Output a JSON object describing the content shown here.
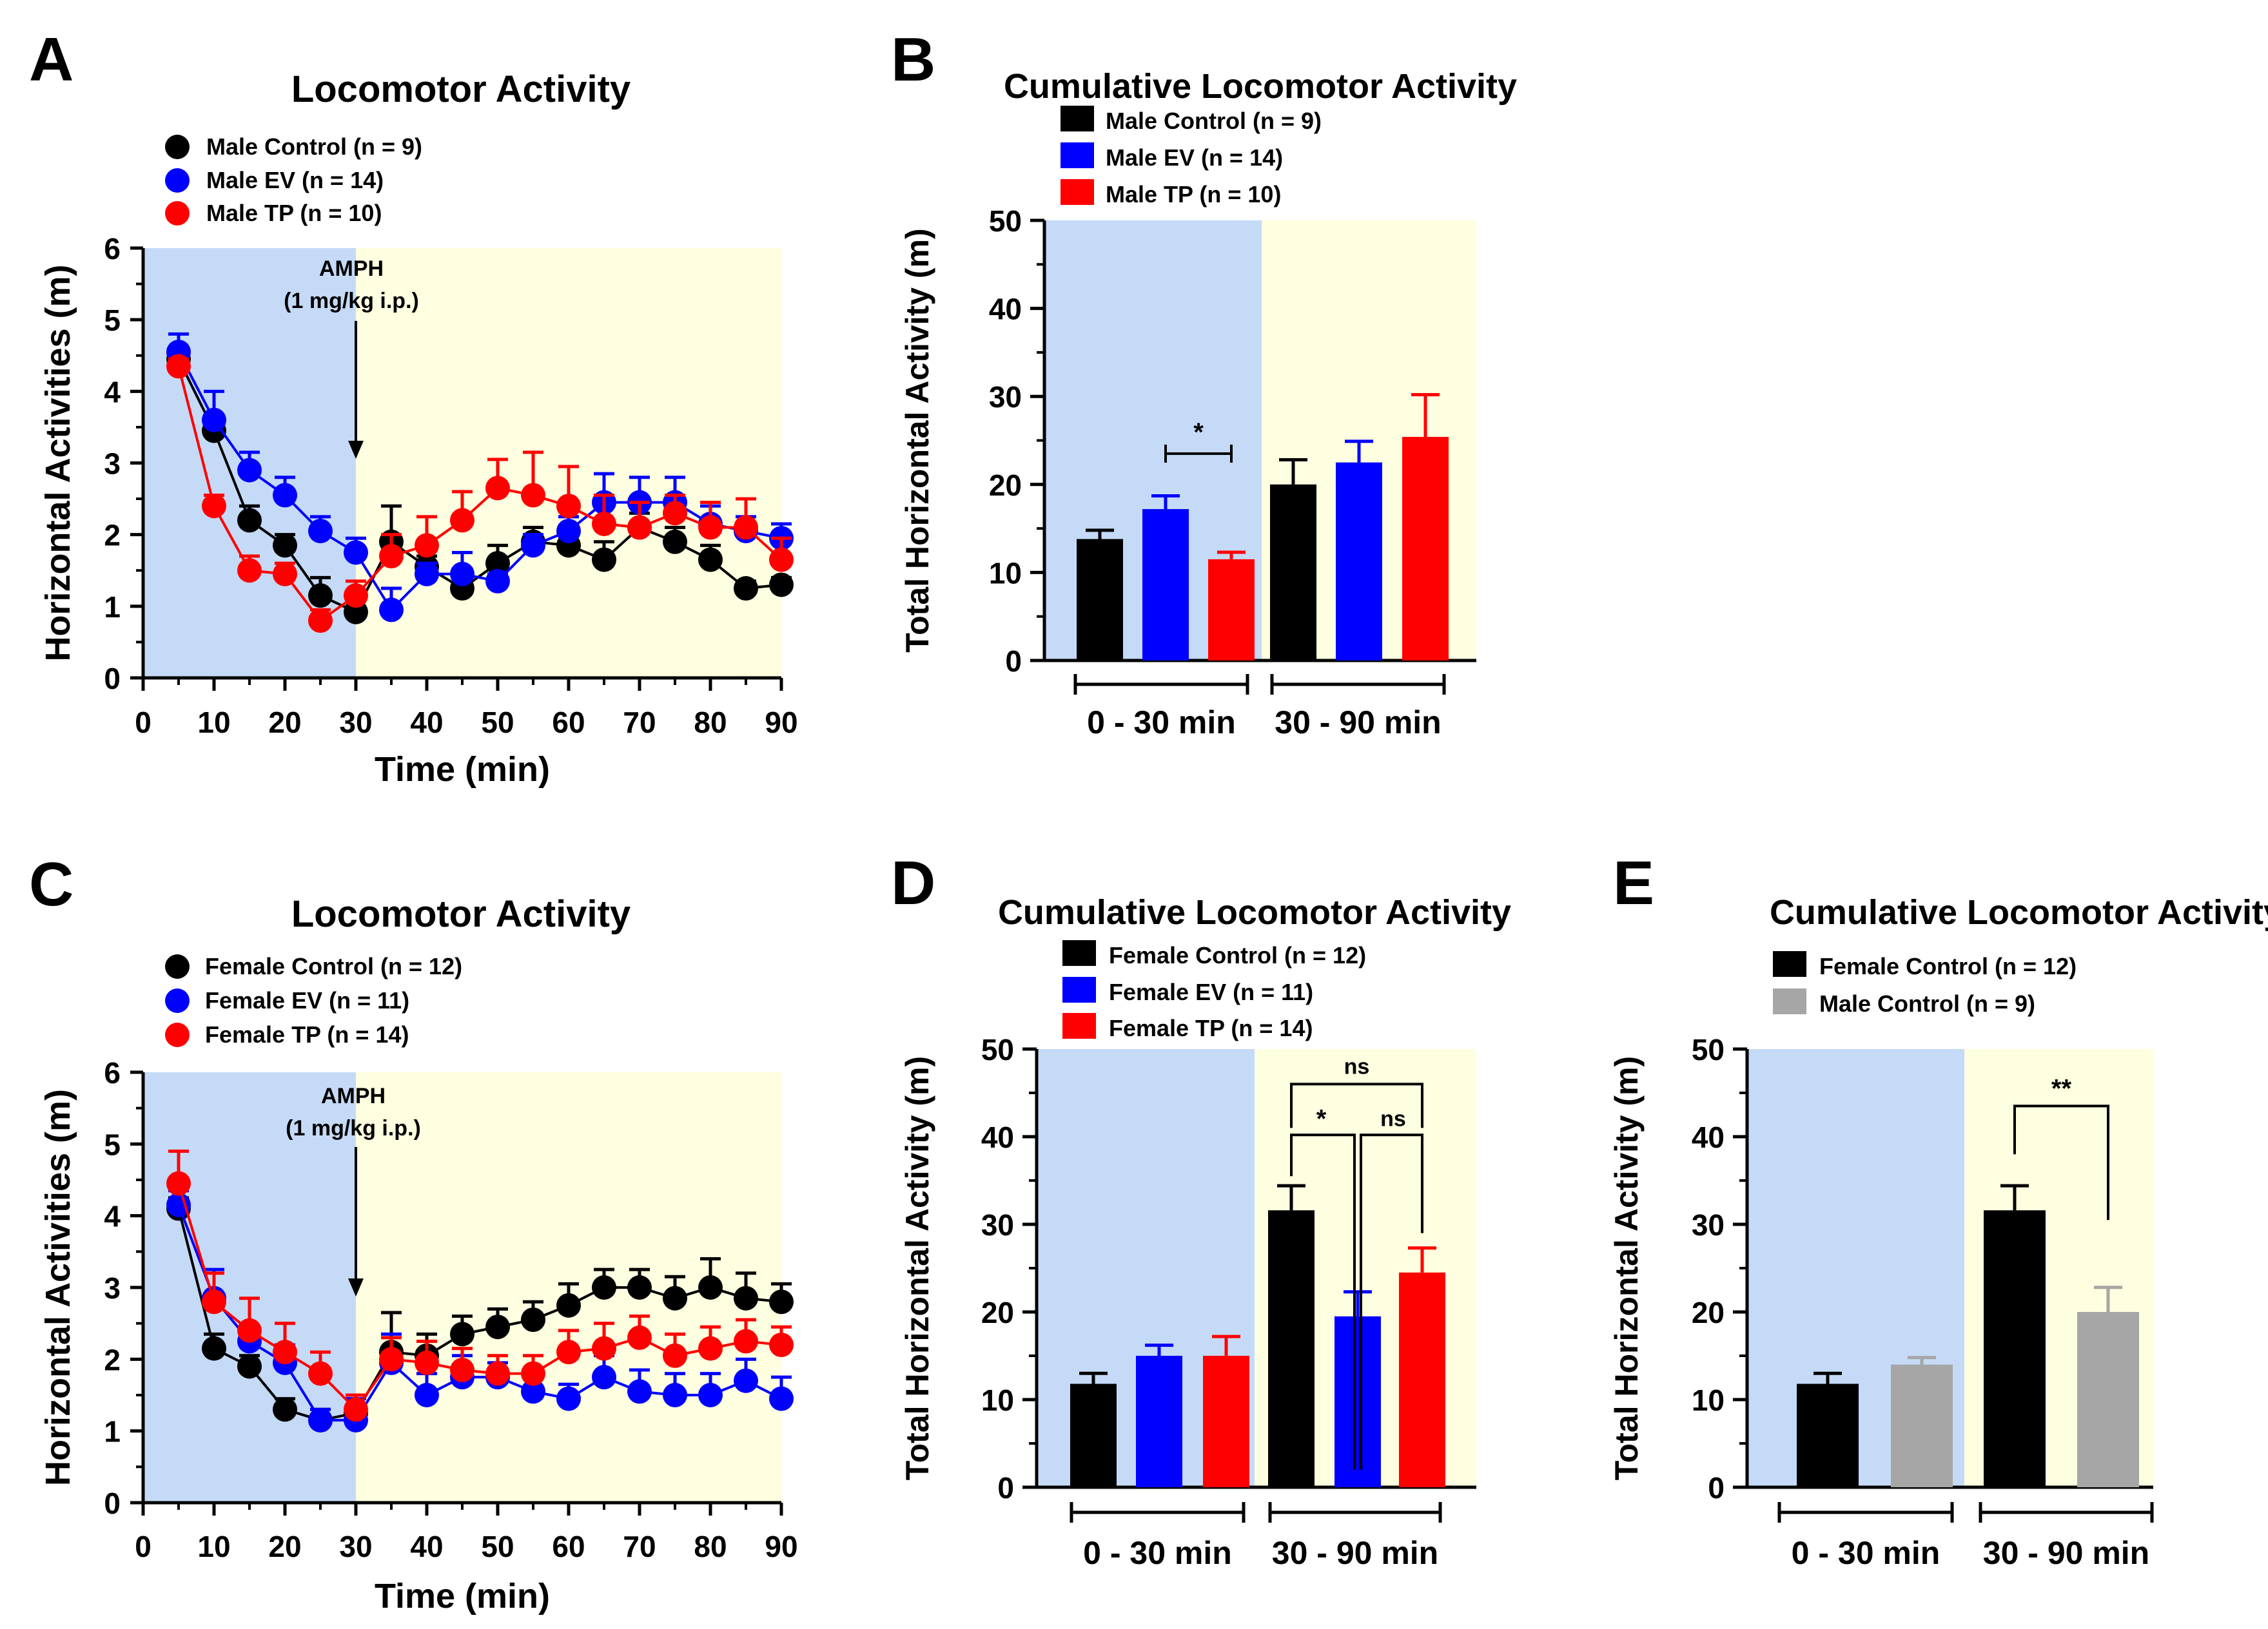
{
  "colors": {
    "black": "#000000",
    "blue": "#0000ff",
    "red": "#ff0000",
    "gray": "#a6a6a6",
    "shade_pre": "#c5daf6",
    "shade_post": "#fefee0"
  },
  "chart_data": [
    {
      "id": "A",
      "type": "line",
      "panel_label": "A",
      "title": "Locomotor Activity",
      "xlabel": "Time (min)",
      "ylabel": "Horizontal Activities (m)",
      "xlim": [
        0,
        90
      ],
      "ylim": [
        0,
        6
      ],
      "xticks": [
        "0",
        "10",
        "20",
        "30",
        "40",
        "50",
        "60",
        "70",
        "80",
        "90"
      ],
      "yticks": [
        "0",
        "1",
        "2",
        "3",
        "4",
        "5",
        "6"
      ],
      "annotation": {
        "line1": "AMPH",
        "line2": "(1 mg/kg i.p.)",
        "x": 30
      },
      "x": [
        5,
        10,
        15,
        20,
        25,
        30,
        35,
        40,
        45,
        50,
        55,
        60,
        65,
        70,
        75,
        80,
        85,
        90
      ],
      "series": [
        {
          "name": "Male Control (n = 9)",
          "color": "#000000",
          "values": [
            4.45,
            3.45,
            2.2,
            1.85,
            1.15,
            0.92,
            1.9,
            1.55,
            1.25,
            1.6,
            1.9,
            1.85,
            1.65,
            2.1,
            1.9,
            1.65,
            1.25,
            1.3
          ],
          "errors": [
            0.15,
            0.15,
            0.2,
            0.15,
            0.25,
            0.15,
            0.5,
            0.15,
            0.1,
            0.25,
            0.2,
            0.2,
            0.25,
            0.2,
            0.2,
            0.2,
            0.1,
            0.1
          ]
        },
        {
          "name": "Male EV (n = 14)",
          "color": "#0000ff",
          "values": [
            4.55,
            3.6,
            2.9,
            2.55,
            2.05,
            1.75,
            0.95,
            1.45,
            1.45,
            1.35,
            1.85,
            2.05,
            2.45,
            2.45,
            2.45,
            2.15,
            2.05,
            1.95
          ],
          "errors": [
            0.25,
            0.4,
            0.25,
            0.25,
            0.2,
            0.2,
            0.3,
            0.15,
            0.3,
            0.1,
            0.15,
            0.2,
            0.4,
            0.35,
            0.35,
            0.25,
            0.2,
            0.2
          ]
        },
        {
          "name": "Male TP (n = 10)",
          "color": "#ff0000",
          "values": [
            4.35,
            2.4,
            1.5,
            1.45,
            0.8,
            1.15,
            1.7,
            1.85,
            2.2,
            2.65,
            2.55,
            2.4,
            2.15,
            2.1,
            2.3,
            2.1,
            2.1,
            1.65
          ],
          "errors": [
            0.1,
            0.15,
            0.2,
            0.15,
            0.15,
            0.2,
            0.3,
            0.4,
            0.4,
            0.4,
            0.6,
            0.55,
            0.4,
            0.35,
            0.25,
            0.35,
            0.4,
            0.3
          ]
        }
      ]
    },
    {
      "id": "B",
      "type": "bar",
      "panel_label": "B",
      "title": "Cumulative Locomotor Activity",
      "ylabel": "Total Horizontal Activity (m)",
      "ylim": [
        0,
        50
      ],
      "yticks": [
        "0",
        "10",
        "20",
        "30",
        "40",
        "50"
      ],
      "categories": [
        "0 - 30 min",
        "30 - 90 min"
      ],
      "series": [
        {
          "name": "Male Control (n = 9)",
          "color": "#000000",
          "values": [
            13.8,
            20.0
          ],
          "errors": [
            1.0,
            2.8
          ]
        },
        {
          "name": "Male EV (n = 14)",
          "color": "#0000ff",
          "values": [
            17.2,
            22.5
          ],
          "errors": [
            1.5,
            2.4
          ]
        },
        {
          "name": "Male TP (n = 10)",
          "color": "#ff0000",
          "values": [
            11.5,
            25.4
          ],
          "errors": [
            0.8,
            4.8
          ]
        }
      ],
      "significance": [
        {
          "label": "*"
        }
      ]
    },
    {
      "id": "C",
      "type": "line",
      "panel_label": "C",
      "title": "Locomotor Activity",
      "xlabel": "Time (min)",
      "ylabel": "Horizontal Activities (m)",
      "xlim": [
        0,
        90
      ],
      "ylim": [
        0,
        6
      ],
      "xticks": [
        "0",
        "10",
        "20",
        "30",
        "40",
        "50",
        "60",
        "70",
        "80",
        "90"
      ],
      "yticks": [
        "0",
        "1",
        "2",
        "3",
        "4",
        "5",
        "6"
      ],
      "annotation": {
        "line1": "AMPH",
        "line2": "(1 mg/kg i.p.)",
        "x": 30
      },
      "x": [
        5,
        10,
        15,
        20,
        25,
        30,
        35,
        40,
        45,
        50,
        55,
        60,
        65,
        70,
        75,
        80,
        85,
        90
      ],
      "series": [
        {
          "name": "Female Control (n = 12)",
          "color": "#000000",
          "values": [
            4.1,
            2.15,
            1.9,
            1.3,
            1.15,
            1.25,
            2.1,
            2.05,
            2.35,
            2.45,
            2.55,
            2.75,
            3.0,
            3.0,
            2.85,
            3.0,
            2.85,
            2.8
          ],
          "errors": [
            0.15,
            0.2,
            0.15,
            0.15,
            0.15,
            0.1,
            0.55,
            0.3,
            0.25,
            0.25,
            0.25,
            0.3,
            0.25,
            0.25,
            0.3,
            0.4,
            0.35,
            0.25
          ]
        },
        {
          "name": "Female EV (n = 11)",
          "color": "#0000ff",
          "values": [
            4.15,
            2.85,
            2.25,
            1.95,
            1.15,
            1.15,
            1.95,
            1.5,
            1.75,
            1.75,
            1.55,
            1.45,
            1.75,
            1.55,
            1.5,
            1.5,
            1.7,
            1.45
          ],
          "errors": [
            0.2,
            0.4,
            0.2,
            0.25,
            0.15,
            0.3,
            0.4,
            0.3,
            0.3,
            0.2,
            0.3,
            0.2,
            0.3,
            0.3,
            0.3,
            0.3,
            0.3,
            0.3
          ]
        },
        {
          "name": "Female TP (n = 14)",
          "color": "#ff0000",
          "values": [
            4.45,
            2.8,
            2.4,
            2.1,
            1.8,
            1.3,
            2.0,
            1.95,
            1.85,
            1.8,
            1.8,
            2.1,
            2.15,
            2.3,
            2.05,
            2.15,
            2.25,
            2.2
          ],
          "errors": [
            0.45,
            0.4,
            0.45,
            0.4,
            0.3,
            0.2,
            0.3,
            0.3,
            0.3,
            0.25,
            0.25,
            0.3,
            0.35,
            0.3,
            0.3,
            0.3,
            0.3,
            0.25
          ]
        }
      ]
    },
    {
      "id": "D",
      "type": "bar",
      "panel_label": "D",
      "title": "Cumulative Locomotor Activity",
      "ylabel": "Total Horizontal Activity (m)",
      "ylim": [
        0,
        50
      ],
      "yticks": [
        "0",
        "10",
        "20",
        "30",
        "40",
        "50"
      ],
      "categories": [
        "0 - 30 min",
        "30 - 90 min"
      ],
      "series": [
        {
          "name": "Female Control (n = 12)",
          "color": "#000000",
          "values": [
            11.8,
            31.6
          ],
          "errors": [
            1.2,
            2.8
          ]
        },
        {
          "name": "Female EV (n = 11)",
          "color": "#0000ff",
          "values": [
            15.0,
            19.5
          ],
          "errors": [
            1.2,
            2.8
          ]
        },
        {
          "name": "Female TP (n = 14)",
          "color": "#ff0000",
          "values": [
            15.0,
            24.5
          ],
          "errors": [
            2.2,
            2.8
          ]
        }
      ],
      "significance": [
        {
          "label": "*"
        },
        {
          "label": "ns"
        },
        {
          "label": "ns"
        }
      ]
    },
    {
      "id": "E",
      "type": "bar",
      "panel_label": "E",
      "title": "Cumulative Locomotor Activity",
      "ylabel": "Total Horizontal Activity (m)",
      "ylim": [
        0,
        50
      ],
      "yticks": [
        "0",
        "10",
        "20",
        "30",
        "40",
        "50"
      ],
      "categories": [
        "0 - 30 min",
        "30 - 90 min"
      ],
      "series": [
        {
          "name": "Female Control (n = 12)",
          "color": "#000000",
          "values": [
            11.8,
            31.6
          ],
          "errors": [
            1.2,
            2.8
          ]
        },
        {
          "name": "Male Control (n = 9)",
          "color": "#a6a6a6",
          "values": [
            14.0,
            20.0
          ],
          "errors": [
            0.8,
            2.8
          ]
        }
      ],
      "significance": [
        {
          "label": "**"
        }
      ]
    }
  ]
}
